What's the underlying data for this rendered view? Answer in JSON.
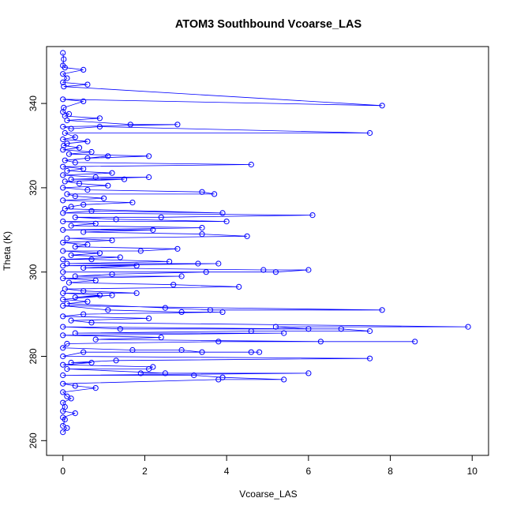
{
  "chart_data": {
    "type": "line",
    "title": "ATOM3 Southbound Vcoarse_LAS",
    "xlabel": "Vcoarse_LAS",
    "ylabel": "Theta (K)",
    "xlim": [
      -0.4,
      10.4
    ],
    "ylim": [
      256.5,
      353.5
    ],
    "x_ticks": [
      0,
      2,
      4,
      6,
      8,
      10
    ],
    "y_ticks": [
      260,
      280,
      300,
      320,
      340
    ],
    "grid": false,
    "legend": "none",
    "series_color": "#0000ff",
    "series": [
      {
        "markers": "open-circle",
        "points": [
          [
            0.0,
            352.0
          ],
          [
            0.02,
            350.5
          ],
          [
            0.0,
            349.0
          ],
          [
            0.05,
            348.5
          ],
          [
            0.5,
            348.0
          ],
          [
            0.0,
            347.0
          ],
          [
            0.1,
            346.0
          ],
          [
            0.0,
            345.0
          ],
          [
            0.6,
            344.5
          ],
          [
            0.02,
            344.0
          ],
          [
            7.8,
            339.5
          ],
          [
            0.0,
            341.0
          ],
          [
            0.5,
            340.5
          ],
          [
            0.02,
            339.0
          ],
          [
            0.0,
            338.0
          ],
          [
            0.15,
            337.5
          ],
          [
            0.05,
            337.0
          ],
          [
            0.9,
            336.5
          ],
          [
            0.1,
            336.0
          ],
          [
            1.65,
            335.0
          ],
          [
            2.8,
            335.0
          ],
          [
            0.0,
            334.5
          ],
          [
            0.2,
            334.0
          ],
          [
            0.9,
            334.5
          ],
          [
            7.5,
            333.0
          ],
          [
            0.05,
            333.0
          ],
          [
            0.3,
            332.0
          ],
          [
            0.0,
            331.5
          ],
          [
            0.6,
            331.0
          ],
          [
            0.1,
            330.5
          ],
          [
            0.02,
            330.0
          ],
          [
            0.4,
            329.5
          ],
          [
            0.0,
            329.0
          ],
          [
            0.7,
            328.5
          ],
          [
            0.15,
            328.0
          ],
          [
            2.1,
            327.5
          ],
          [
            0.6,
            327.0
          ],
          [
            1.1,
            327.5
          ],
          [
            0.05,
            326.5
          ],
          [
            0.3,
            326.0
          ],
          [
            4.6,
            325.5
          ],
          [
            0.0,
            325.0
          ],
          [
            0.5,
            324.5
          ],
          [
            0.1,
            324.0
          ],
          [
            1.2,
            323.5
          ],
          [
            0.0,
            323.0
          ],
          [
            0.8,
            322.5
          ],
          [
            2.1,
            322.5
          ],
          [
            0.2,
            322.0
          ],
          [
            1.5,
            322.0
          ],
          [
            0.05,
            321.5
          ],
          [
            0.4,
            321.0
          ],
          [
            1.1,
            320.5
          ],
          [
            0.0,
            320.0
          ],
          [
            0.6,
            319.5
          ],
          [
            3.4,
            319.0
          ],
          [
            3.7,
            318.5
          ],
          [
            0.1,
            318.5
          ],
          [
            0.3,
            318.0
          ],
          [
            1.0,
            317.5
          ],
          [
            0.0,
            317.0
          ],
          [
            1.7,
            316.5
          ],
          [
            0.5,
            316.0
          ],
          [
            0.2,
            315.5
          ],
          [
            0.05,
            315.0
          ],
          [
            3.9,
            314.0
          ],
          [
            0.7,
            314.5
          ],
          [
            0.0,
            314.0
          ],
          [
            6.1,
            313.5
          ],
          [
            2.4,
            313.0
          ],
          [
            0.3,
            313.0
          ],
          [
            1.3,
            312.5
          ],
          [
            4.0,
            312.0
          ],
          [
            0.0,
            312.0
          ],
          [
            0.8,
            311.5
          ],
          [
            0.2,
            311.0
          ],
          [
            3.4,
            310.5
          ],
          [
            0.0,
            310.0
          ],
          [
            2.2,
            310.0
          ],
          [
            0.5,
            309.5
          ],
          [
            3.4,
            309.0
          ],
          [
            4.5,
            308.5
          ],
          [
            0.1,
            308.0
          ],
          [
            1.2,
            307.5
          ],
          [
            0.0,
            307.0
          ],
          [
            0.6,
            306.5
          ],
          [
            0.3,
            306.0
          ],
          [
            2.8,
            305.5
          ],
          [
            1.9,
            305.0
          ],
          [
            0.0,
            305.0
          ],
          [
            0.9,
            304.5
          ],
          [
            0.2,
            304.0
          ],
          [
            1.4,
            303.5
          ],
          [
            0.0,
            303.0
          ],
          [
            0.7,
            303.0
          ],
          [
            2.6,
            302.5
          ],
          [
            0.1,
            302.0
          ],
          [
            3.3,
            302.0
          ],
          [
            3.8,
            302.0
          ],
          [
            0.0,
            301.5
          ],
          [
            1.8,
            301.5
          ],
          [
            0.5,
            301.0
          ],
          [
            4.9,
            300.5
          ],
          [
            6.0,
            300.5
          ],
          [
            5.2,
            300.0
          ],
          [
            0.0,
            300.0
          ],
          [
            3.5,
            300.0
          ],
          [
            1.2,
            299.5
          ],
          [
            0.3,
            299.0
          ],
          [
            2.9,
            299.0
          ],
          [
            0.0,
            298.5
          ],
          [
            0.8,
            298.0
          ],
          [
            0.15,
            297.5
          ],
          [
            2.7,
            297.0
          ],
          [
            4.3,
            296.5
          ],
          [
            0.05,
            296.0
          ],
          [
            0.5,
            295.5
          ],
          [
            1.8,
            295.0
          ],
          [
            0.0,
            295.0
          ],
          [
            0.9,
            294.5
          ],
          [
            0.3,
            294.0
          ],
          [
            1.2,
            294.5
          ],
          [
            0.0,
            293.5
          ],
          [
            0.6,
            293.0
          ],
          [
            0.1,
            292.5
          ],
          [
            2.5,
            291.5
          ],
          [
            3.6,
            291.0
          ],
          [
            7.8,
            291.0
          ],
          [
            0.0,
            292.0
          ],
          [
            1.1,
            291.0
          ],
          [
            2.9,
            290.5
          ],
          [
            3.9,
            290.5
          ],
          [
            0.5,
            290.0
          ],
          [
            0.0,
            289.5
          ],
          [
            2.1,
            289.0
          ],
          [
            0.2,
            288.5
          ],
          [
            0.7,
            288.0
          ],
          [
            9.9,
            287.0
          ],
          [
            5.2,
            287.0
          ],
          [
            6.0,
            286.5
          ],
          [
            0.0,
            287.0
          ],
          [
            1.4,
            286.5
          ],
          [
            6.8,
            286.5
          ],
          [
            7.5,
            286.0
          ],
          [
            4.6,
            286.0
          ],
          [
            0.3,
            285.5
          ],
          [
            5.4,
            285.5
          ],
          [
            0.0,
            285.0
          ],
          [
            2.4,
            284.5
          ],
          [
            0.8,
            284.0
          ],
          [
            6.3,
            283.5
          ],
          [
            8.6,
            283.5
          ],
          [
            3.8,
            283.5
          ],
          [
            0.1,
            283.0
          ],
          [
            0.0,
            282.0
          ],
          [
            1.7,
            281.5
          ],
          [
            2.9,
            281.5
          ],
          [
            3.4,
            281.0
          ],
          [
            4.6,
            281.0
          ],
          [
            4.8,
            281.0
          ],
          [
            0.5,
            281.0
          ],
          [
            0.0,
            280.0
          ],
          [
            7.5,
            279.5
          ],
          [
            1.3,
            279.0
          ],
          [
            0.2,
            278.5
          ],
          [
            0.7,
            278.5
          ],
          [
            0.0,
            278.0
          ],
          [
            2.2,
            277.5
          ],
          [
            2.1,
            277.0
          ],
          [
            0.1,
            277.0
          ],
          [
            2.5,
            276.0
          ],
          [
            1.9,
            276.0
          ],
          [
            6.0,
            276.0
          ],
          [
            0.0,
            275.5
          ],
          [
            3.2,
            275.5
          ],
          [
            3.9,
            275.0
          ],
          [
            5.4,
            274.5
          ],
          [
            3.8,
            274.5
          ],
          [
            0.0,
            273.5
          ],
          [
            0.3,
            273.0
          ],
          [
            0.8,
            272.5
          ],
          [
            0.0,
            271.5
          ],
          [
            0.1,
            270.5
          ],
          [
            0.2,
            270.0
          ],
          [
            0.0,
            269.0
          ],
          [
            0.05,
            268.0
          ],
          [
            0.0,
            267.0
          ],
          [
            0.3,
            266.5
          ],
          [
            0.0,
            265.5
          ],
          [
            0.05,
            265.0
          ],
          [
            0.0,
            263.5
          ],
          [
            0.1,
            263.0
          ],
          [
            0.0,
            262.0
          ]
        ]
      }
    ]
  }
}
